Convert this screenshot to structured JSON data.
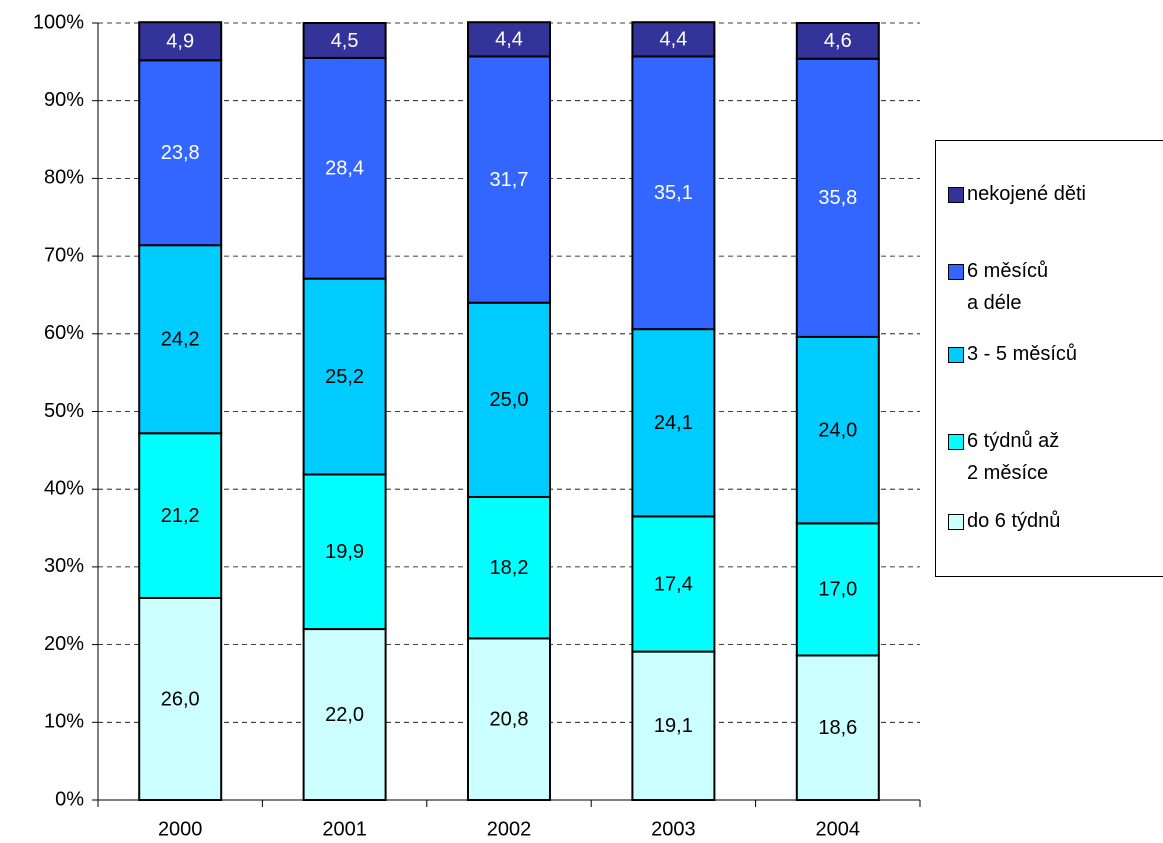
{
  "chart_data": {
    "type": "stacked_bar",
    "categories": [
      "2000",
      "2001",
      "2002",
      "2003",
      "2004"
    ],
    "series": [
      {
        "name": "do 6 týdnů",
        "color": "#ccffff",
        "label_color": "#000000",
        "values": [
          26.0,
          22.0,
          20.8,
          19.1,
          18.6
        ],
        "value_labels": [
          "26,0",
          "22,0",
          "20,8",
          "19,1",
          "18,6"
        ]
      },
      {
        "name": "6 týdnů až\n2 měsíce",
        "color": "#00ffff",
        "label_color": "#000000",
        "values": [
          21.2,
          19.9,
          18.2,
          17.4,
          17.0
        ],
        "value_labels": [
          "21,2",
          "19,9",
          "18,2",
          "17,4",
          "17,0"
        ]
      },
      {
        "name": "3 - 5 měsíců",
        "color": "#00ccff",
        "label_color": "#000000",
        "values": [
          24.2,
          25.2,
          25.0,
          24.1,
          24.0
        ],
        "value_labels": [
          "24,2",
          "25,2",
          "25,0",
          "24,1",
          "24,0"
        ]
      },
      {
        "name": "6 měsíců\na déle",
        "color": "#3366ff",
        "label_color": "#ffffff",
        "values": [
          23.8,
          28.4,
          31.7,
          35.1,
          35.8
        ],
        "value_labels": [
          "23,8",
          "28,4",
          "31,7",
          "35,1",
          "35,8"
        ]
      },
      {
        "name": "nekojené děti",
        "color": "#333399",
        "label_color": "#ffffff",
        "values": [
          4.9,
          4.5,
          4.4,
          4.4,
          4.6
        ],
        "value_labels": [
          "4,9",
          "4,5",
          "4,4",
          "4,4",
          "4,6"
        ]
      }
    ],
    "ylim": [
      0,
      100
    ],
    "yticks": [
      {
        "value": 0,
        "label": "0%"
      },
      {
        "value": 10,
        "label": "10%"
      },
      {
        "value": 20,
        "label": "20%"
      },
      {
        "value": 30,
        "label": "30%"
      },
      {
        "value": 40,
        "label": "40%"
      },
      {
        "value": 50,
        "label": "50%"
      },
      {
        "value": 60,
        "label": "60%"
      },
      {
        "value": 70,
        "label": "70%"
      },
      {
        "value": 80,
        "label": "80%"
      },
      {
        "value": 90,
        "label": "90%"
      },
      {
        "value": 100,
        "label": "100%"
      }
    ],
    "grid": true
  }
}
